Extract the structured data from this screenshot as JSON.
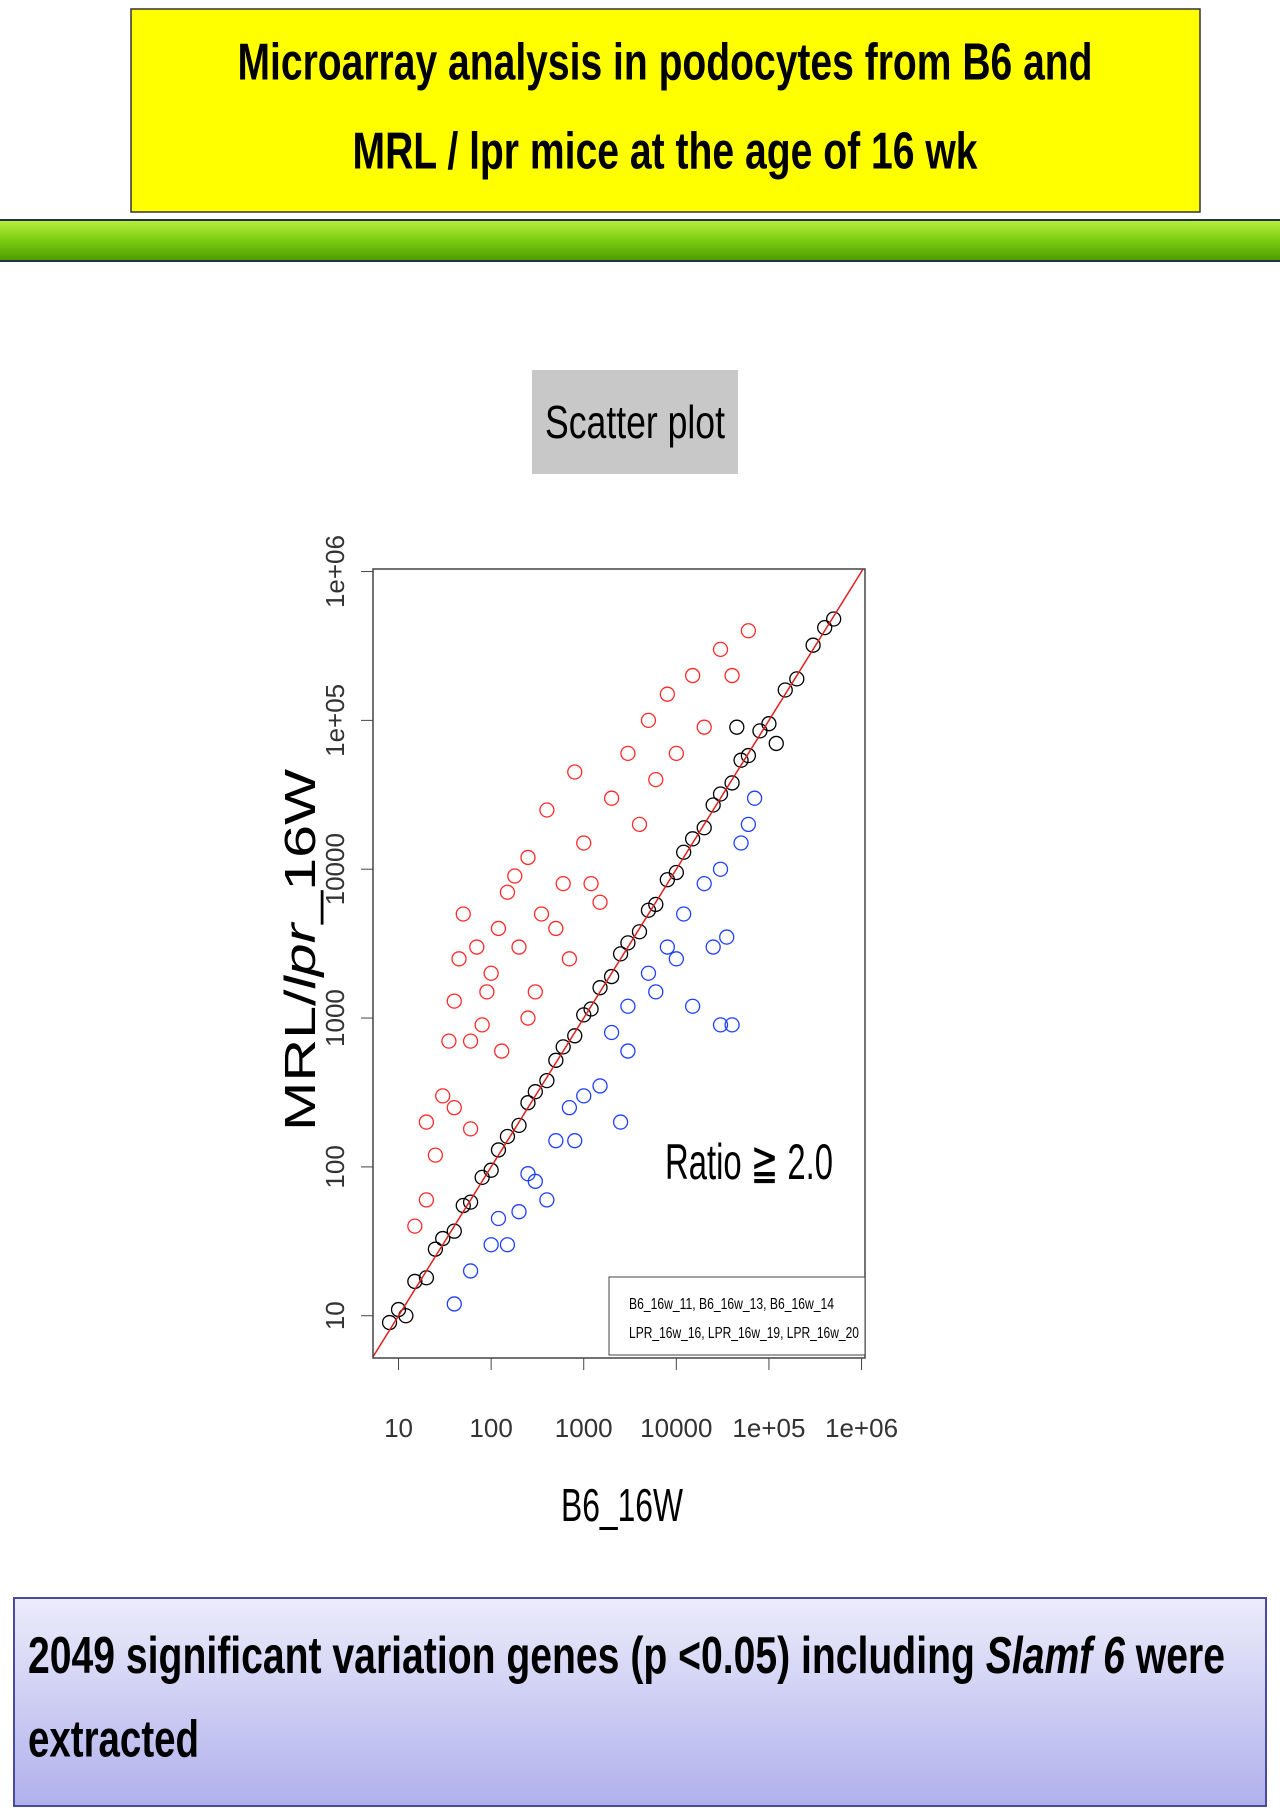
{
  "header": {
    "lines": [
      "Microarray analysis in podocytes from B6 and",
      "MRL / lpr mice at the age of 16 wk"
    ]
  },
  "chart_data": {
    "type": "scatter",
    "title": "Scatter plot",
    "x_label": "B6_16W",
    "y_label": [
      "MRL/",
      "lpr",
      "_16W"
    ],
    "annotation": "Ratio ≧ 2.0",
    "legend_text": [
      "B6_16w_11, B6_16w_13, B6_16w_14",
      "LPR_16w_16, LPR_16w_19, LPR_16w_20"
    ],
    "log_scale": true,
    "identity_line_color": "#e02020",
    "xlim": [
      5.3,
      1090000
    ],
    "ylim": [
      5.2,
      1040000
    ],
    "xticks": [
      10,
      100,
      1000,
      10000,
      {
        "value": 100000,
        "label": "1e+05"
      },
      {
        "value": 1000000,
        "label": "1e+06"
      }
    ],
    "yticks": [
      10,
      100,
      1000,
      10000,
      {
        "value": 100000,
        "label": "1e+05"
      },
      {
        "value": 1000000,
        "label": "1e+06"
      }
    ],
    "series": [
      {
        "color": "#ff2a2a",
        "x": [
          15,
          20,
          25,
          30,
          35,
          40,
          50,
          60,
          70,
          80,
          100,
          120,
          150,
          200,
          250,
          300,
          400,
          500,
          600,
          800,
          1000,
          1500,
          2000,
          3000,
          4000,
          5000,
          6000,
          8000,
          10000,
          15000,
          20000,
          30000,
          40000,
          60000,
          20,
          45,
          90,
          130,
          180,
          350,
          700,
          40,
          60,
          250,
          1200
        ],
        "y": [
          40,
          60,
          120,
          300,
          700,
          1300,
          5000,
          700,
          3000,
          900,
          2000,
          4000,
          7000,
          3000,
          12000,
          1500,
          25000,
          4000,
          8000,
          45000,
          15000,
          6000,
          30000,
          60000,
          20000,
          100000,
          40000,
          150000,
          60000,
          200000,
          90000,
          300000,
          200000,
          400000,
          200,
          2500,
          1500,
          600,
          9000,
          5000,
          2500,
          250,
          180,
          1000,
          8000
        ]
      },
      {
        "color": "#2040ff",
        "x": [
          40,
          60,
          100,
          150,
          200,
          300,
          400,
          500,
          700,
          1000,
          1500,
          2000,
          3000,
          3000,
          5000,
          6000,
          8000,
          10000,
          12000,
          15000,
          20000,
          25000,
          30000,
          40000,
          30000,
          50000,
          60000,
          70000,
          35000,
          2500,
          800,
          120,
          250
        ],
        "y": [
          12,
          20,
          30,
          30,
          50,
          80,
          60,
          150,
          250,
          300,
          350,
          800,
          600,
          1200,
          2000,
          1500,
          3000,
          2500,
          5000,
          1200,
          8000,
          3000,
          10000,
          900,
          900,
          15000,
          20000,
          30000,
          3500,
          200,
          150,
          45,
          90
        ]
      },
      {
        "color": "#000000",
        "x": [
          8,
          10,
          12,
          15,
          20,
          25,
          30,
          40,
          50,
          60,
          80,
          100,
          120,
          150,
          200,
          250,
          300,
          400,
          500,
          600,
          800,
          1000,
          1200,
          1500,
          2000,
          2500,
          3000,
          4000,
          5000,
          6000,
          8000,
          10000,
          12000,
          15000,
          20000,
          25000,
          30000,
          40000,
          50000,
          60000,
          80000,
          100000,
          150000,
          200000,
          300000,
          400000,
          500000,
          45000,
          120000
        ],
        "y": [
          9,
          11,
          10,
          17,
          18,
          28,
          33,
          37,
          55,
          58,
          85,
          95,
          130,
          160,
          190,
          270,
          320,
          380,
          520,
          640,
          760,
          1050,
          1150,
          1600,
          1900,
          2700,
          3200,
          3800,
          5300,
          5800,
          8500,
          9500,
          13000,
          16000,
          19000,
          27000,
          32000,
          38000,
          54000,
          58000,
          85000,
          95000,
          160000,
          190000,
          320000,
          420000,
          480000,
          90000,
          70000
        ]
      }
    ]
  },
  "footer": {
    "lines": [
      [
        "2049 significant variation genes (p <0.05) including ",
        "Slamf 6",
        " were"
      ],
      [
        "extracted"
      ]
    ]
  }
}
